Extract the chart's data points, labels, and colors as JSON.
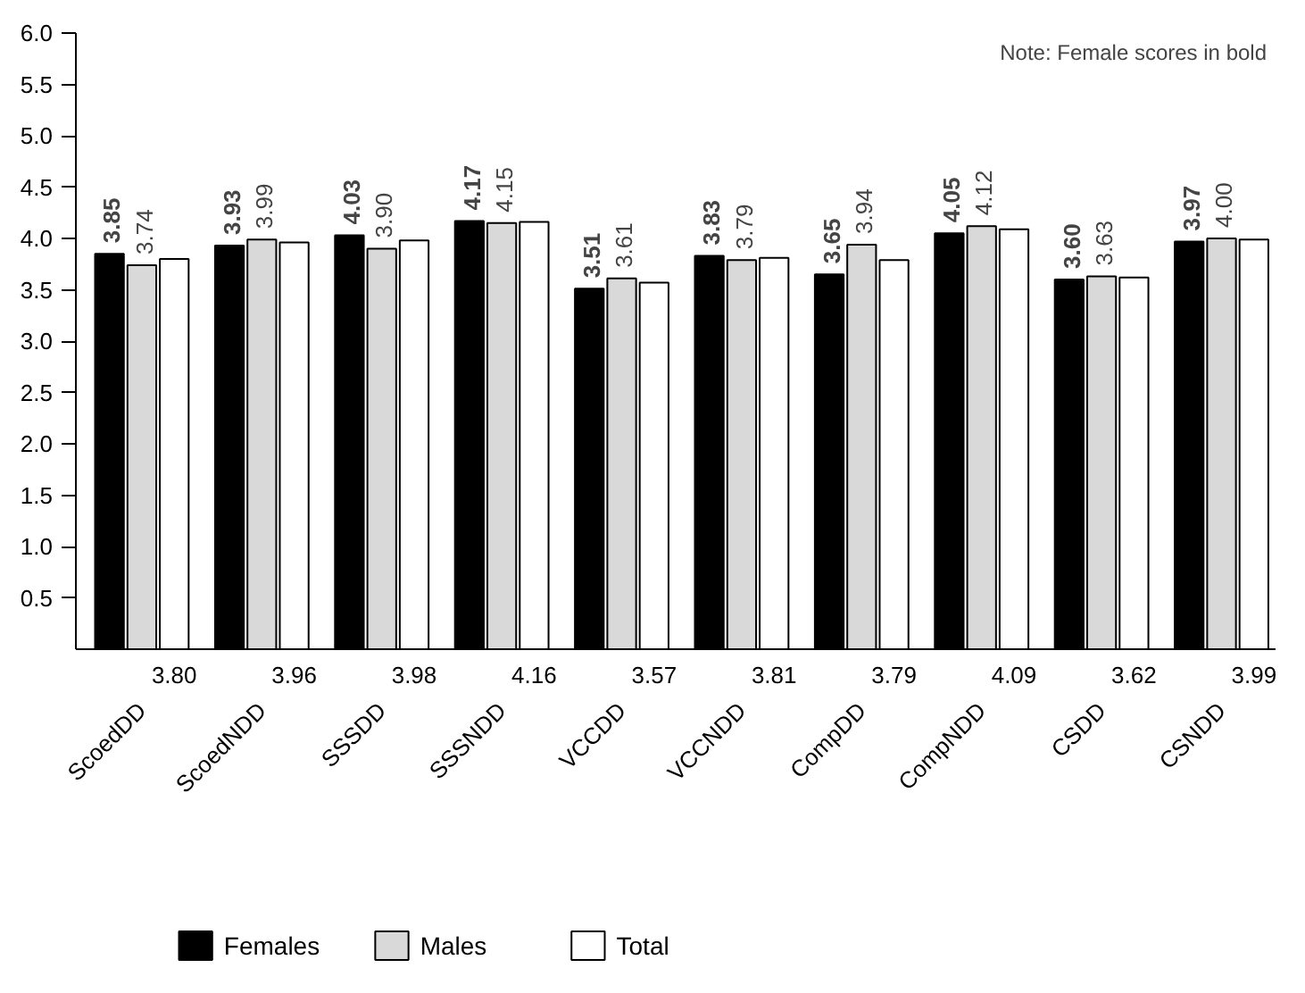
{
  "chart_data": {
    "type": "bar",
    "categories": [
      "ScoedDD",
      "ScoedNDD",
      "SSSDD",
      "SSSNDD",
      "VCCDD",
      "VCCNDD",
      "CompDD",
      "CompNDD",
      "CSDD",
      "CSNDD"
    ],
    "series": [
      {
        "name": "Females",
        "color": "#000000",
        "values": [
          3.85,
          3.93,
          4.03,
          4.17,
          3.51,
          3.83,
          3.65,
          4.05,
          3.6,
          3.97
        ],
        "value_labels": [
          "3.85",
          "3.93",
          "4.03",
          "4.17",
          "3.51",
          "3.83",
          "3.65",
          "4.05",
          "3.60",
          "3.97"
        ]
      },
      {
        "name": "Males",
        "color": "#d9d9d9",
        "values": [
          3.74,
          3.99,
          3.9,
          4.15,
          3.61,
          3.79,
          3.94,
          4.12,
          3.63,
          4.0
        ],
        "value_labels": [
          "3.74",
          "3.99",
          "3.90",
          "4.15",
          "3.61",
          "3.79",
          "3.94",
          "4.12",
          "3.63",
          "4.00"
        ]
      },
      {
        "name": "Total",
        "color": "#ffffff",
        "values": [
          3.8,
          3.96,
          3.98,
          4.16,
          3.57,
          3.81,
          3.79,
          4.09,
          3.62,
          3.99
        ],
        "value_labels": [
          "3.80",
          "3.96",
          "3.98",
          "4.16",
          "3.57",
          "3.81",
          "3.79",
          "4.09",
          "3.62",
          "3.99"
        ]
      }
    ],
    "ylim": [
      0,
      6
    ],
    "yticks": [
      0.5,
      {
        "value": 1,
        "label": "1.0"
      },
      1.5,
      {
        "value": 2,
        "label": "2.0"
      },
      2.5,
      {
        "value": 3,
        "label": "3.0"
      },
      3.5,
      {
        "value": 4,
        "label": "4.0"
      },
      4.5,
      {
        "value": 5,
        "label": "5.0"
      },
      5.5,
      {
        "value": 6,
        "label": "6.0"
      }
    ],
    "grid": false,
    "legend": "bottom",
    "annotations": [
      "Note: Female scores in bold"
    ]
  }
}
